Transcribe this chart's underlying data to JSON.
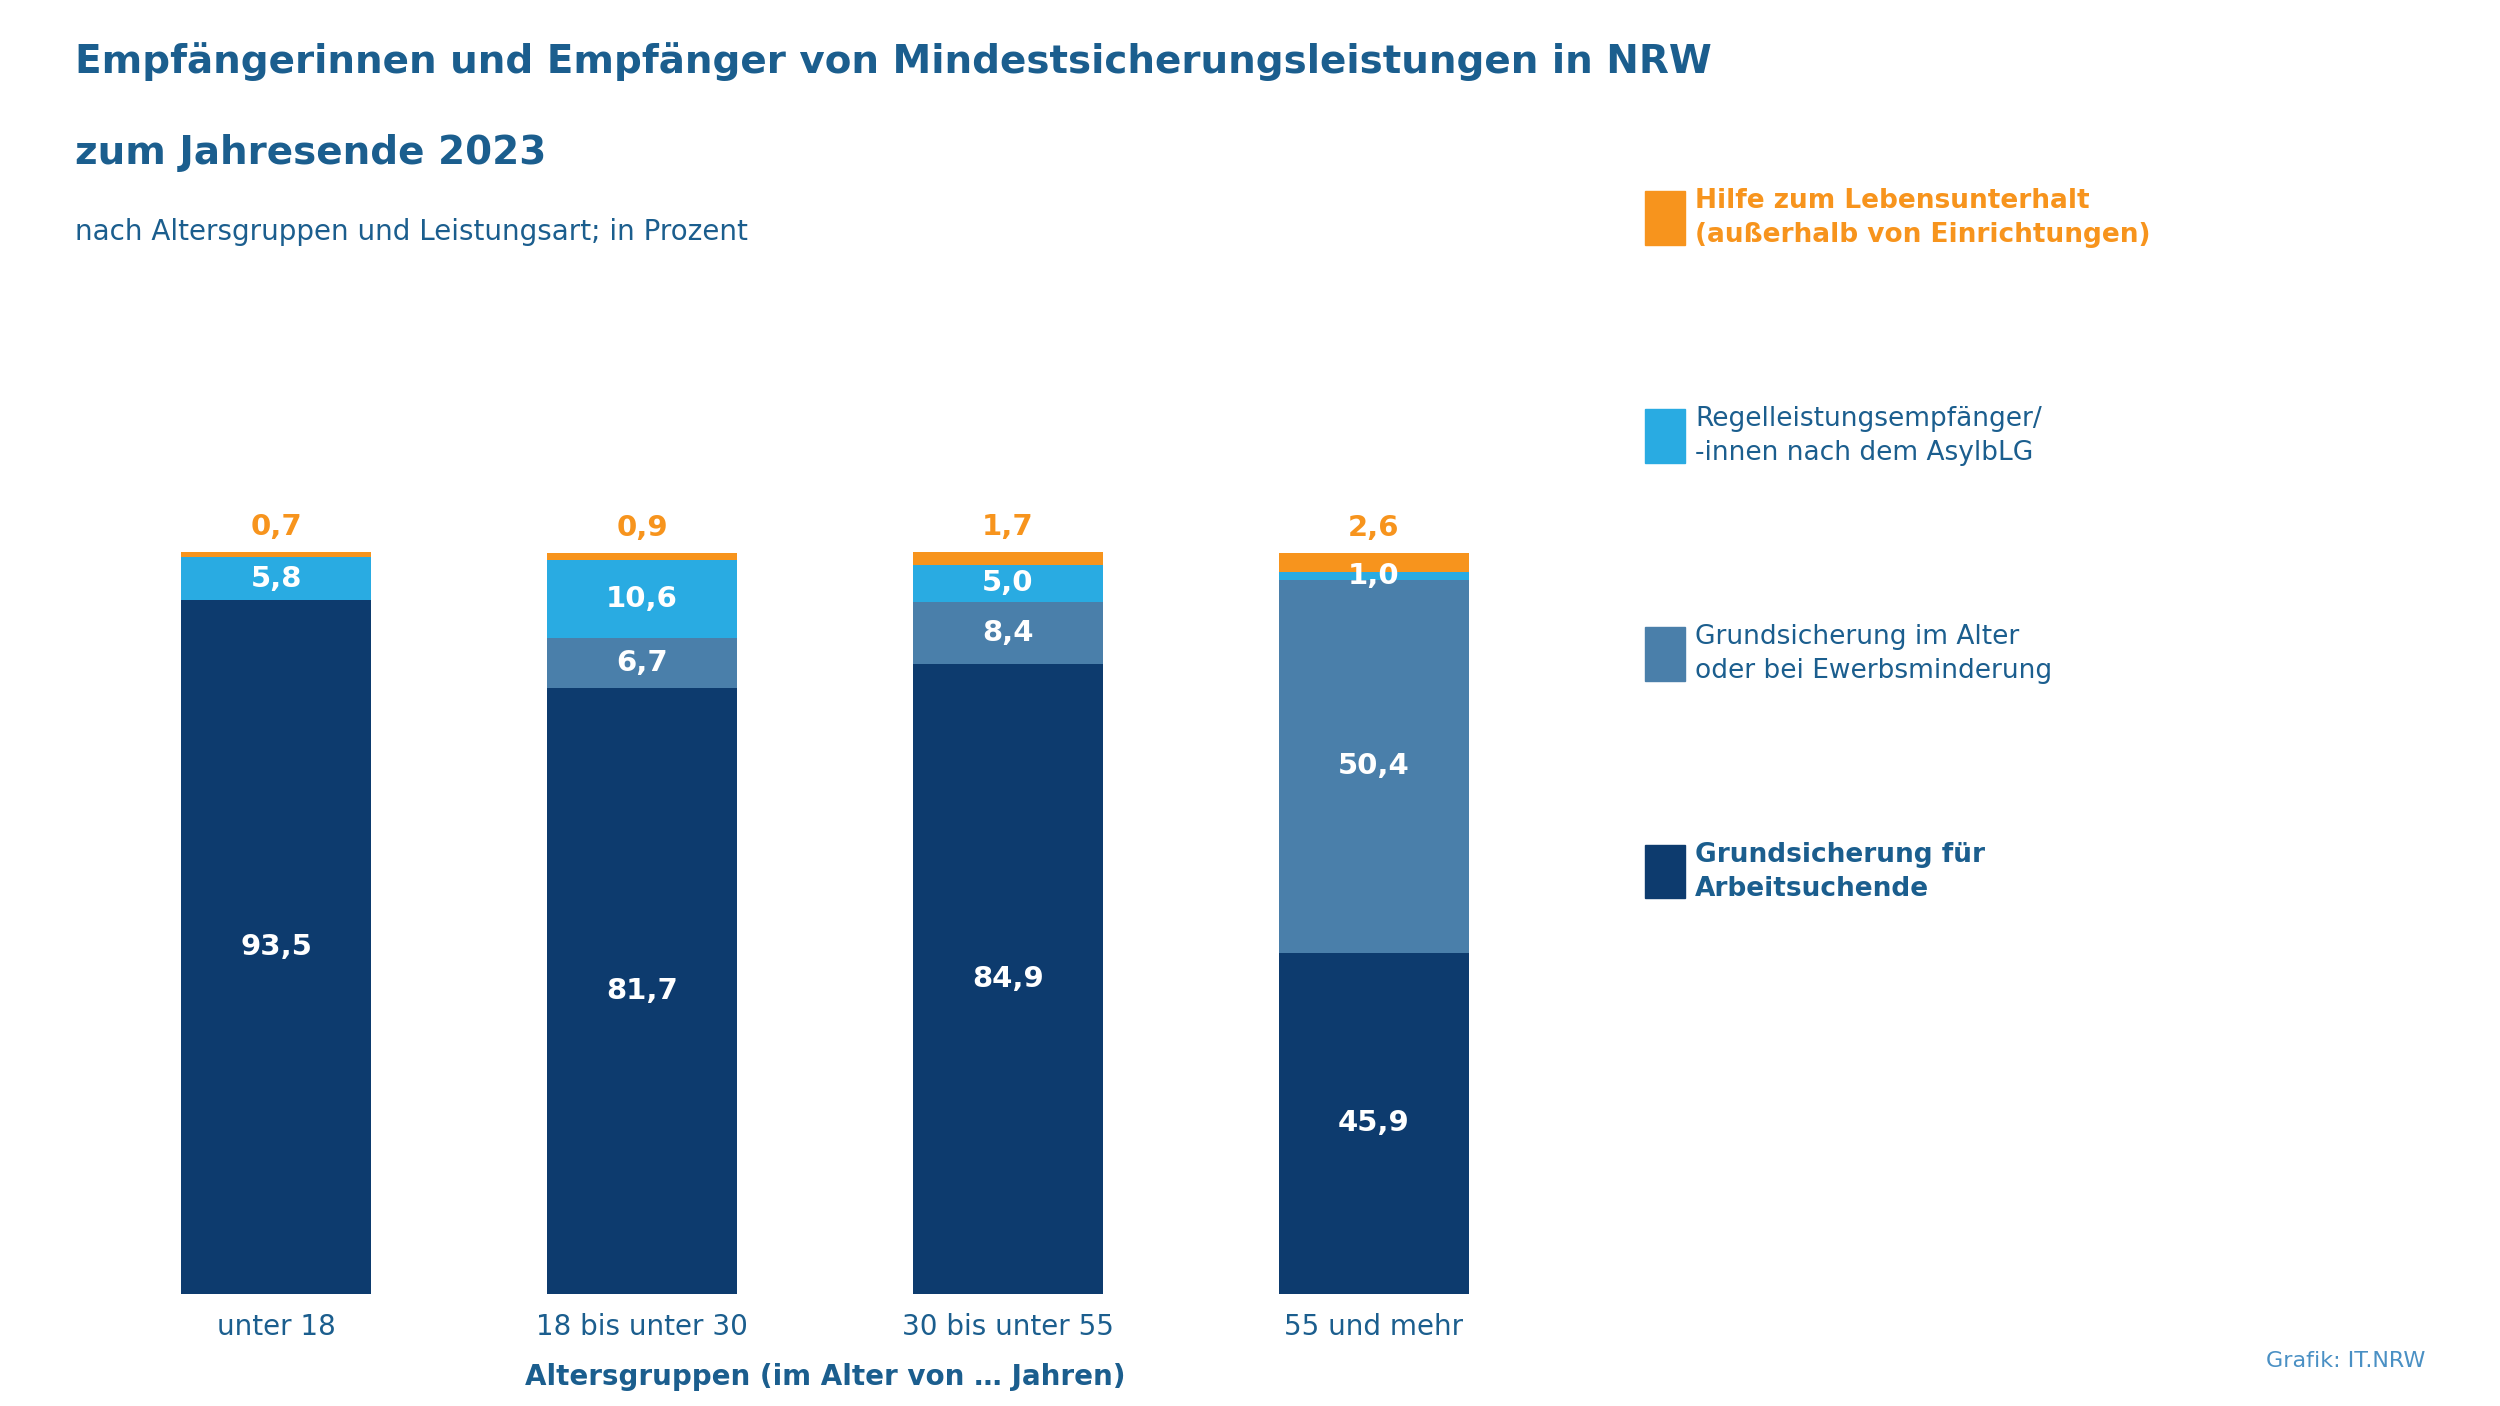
{
  "categories": [
    "unter 18",
    "18 bis unter 30",
    "30 bis unter 55",
    "55 und mehr"
  ],
  "series": [
    {
      "name": "Grundsicherung für\nArbeitsuchende",
      "values": [
        93.5,
        81.7,
        84.9,
        45.9
      ],
      "color": "#0d3b6e"
    },
    {
      "name": "Grundsicherung im Alter\noder bei Ewerbsminderung",
      "values": [
        0.0,
        6.7,
        8.4,
        50.4
      ],
      "color": "#4a7faa"
    },
    {
      "name": "Regelleistungsempfänger/\n-innen nach dem AsylbLG",
      "values": [
        5.8,
        10.6,
        5.0,
        1.0
      ],
      "color": "#29abe2"
    },
    {
      "name": "Hilfe zum Lebensunterhalt\n(außerhalb von Einrichtungen)",
      "values": [
        0.7,
        0.9,
        1.7,
        2.6
      ],
      "color": "#f7941d"
    }
  ],
  "title_line1": "Empfängerinnen und Empfänger von Mindestsicherungsleistungen in NRW",
  "title_line2": "zum Jahresende 2023",
  "subtitle": "nach Altersgruppen und Leistungsart; in Prozent",
  "xlabel": "Altersgruppen (im Alter von … Jahren)",
  "source": "Grafik: IT.NRW",
  "title_color": "#1b5e8e",
  "subtitle_color": "#1b5e8e",
  "xlabel_color": "#1b5e8e",
  "source_color": "#4a90c4",
  "bar_label_color_white": "#ffffff",
  "bar_label_color_orange": "#f7941d",
  "background_color": "#ffffff",
  "bar_width": 0.52,
  "ylim": [
    0,
    110
  ],
  "legend_name_colors": [
    "#f7941d",
    "#1b5e8e",
    "#1b5e8e",
    "#1b5e8e"
  ],
  "legend_name_bold": [
    true,
    false,
    false,
    false
  ]
}
